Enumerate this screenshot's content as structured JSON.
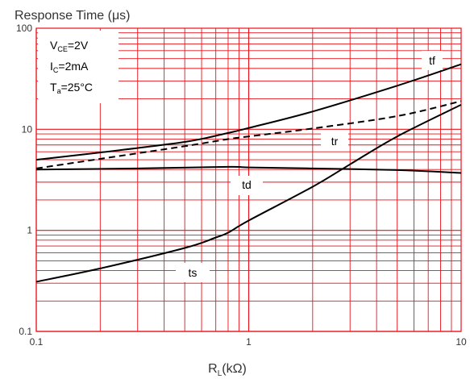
{
  "chart_data": {
    "type": "line",
    "ylabel": "Response Time (μs)",
    "xlabel": {
      "main": "R",
      "sub": "L",
      "rest": "(kΩ)"
    },
    "x_scale": "log",
    "y_scale": "log",
    "xlim": [
      0.1,
      10
    ],
    "ylim": [
      0.1,
      100
    ],
    "x_tick_labels": [
      "0.1",
      "1",
      "10"
    ],
    "y_tick_labels": [
      "0.1",
      "1",
      "10",
      "100"
    ],
    "grid": true,
    "conditions": [
      {
        "main": "V",
        "sub": "CE",
        "rest": "=2V"
      },
      {
        "main": "I",
        "sub": "C",
        "rest": "=2mA"
      },
      {
        "main": "T",
        "sub": "a",
        "rest": "=25°C"
      }
    ],
    "series": [
      {
        "name": "tf",
        "style": "solid",
        "x": [
          0.1,
          0.2,
          0.5,
          0.8,
          1,
          2,
          5,
          10
        ],
        "y": [
          5,
          5.9,
          7.5,
          9.2,
          10.3,
          15,
          27,
          44
        ]
      },
      {
        "name": "tr",
        "style": "dashed",
        "x": [
          0.1,
          0.2,
          0.5,
          0.8,
          1,
          2,
          5,
          10
        ],
        "y": [
          4.1,
          5.1,
          6.8,
          8.0,
          8.5,
          10.2,
          13.5,
          19
        ]
      },
      {
        "name": "td",
        "style": "solid",
        "x": [
          0.1,
          0.3,
          0.8,
          1,
          2,
          5,
          10
        ],
        "y": [
          4.0,
          4.1,
          4.25,
          4.2,
          4.1,
          3.95,
          3.7
        ]
      },
      {
        "name": "ts",
        "style": "solid",
        "x": [
          0.1,
          0.2,
          0.5,
          0.7,
          0.8,
          1,
          2,
          3,
          5,
          10
        ],
        "y": [
          0.31,
          0.42,
          0.67,
          0.85,
          0.95,
          1.25,
          2.7,
          4.5,
          8.5,
          17.5
        ]
      }
    ]
  },
  "colors": {
    "grid": "#e8131a",
    "curve": "#000000",
    "frame": "#e8131a",
    "text": "#333333"
  }
}
